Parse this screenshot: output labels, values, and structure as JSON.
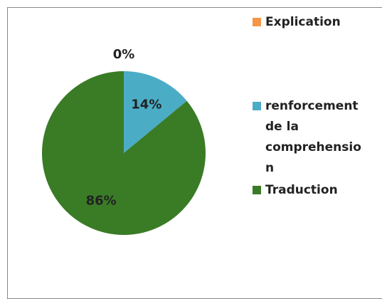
{
  "chart_data": {
    "type": "pie",
    "categories": [
      "Explication",
      "renforcement de la comprehension",
      "Traduction"
    ],
    "values": [
      0,
      14,
      86
    ],
    "value_labels": [
      "0%",
      "14%",
      "86%"
    ],
    "colors": [
      "#f79646",
      "#4bacc6",
      "#3a7b26"
    ]
  }
}
